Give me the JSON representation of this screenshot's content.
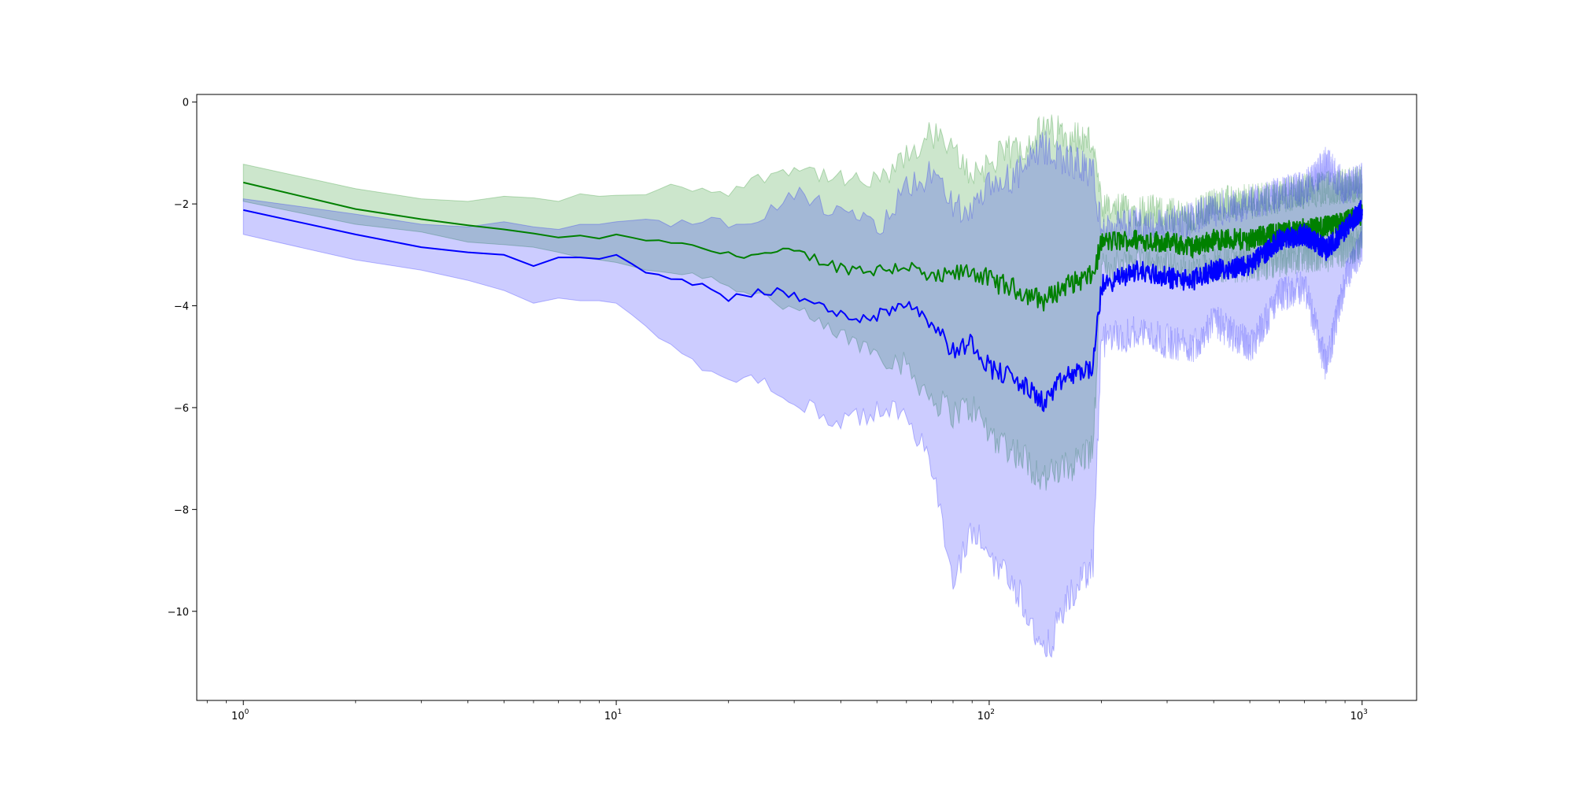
{
  "chart_data": {
    "type": "line",
    "title": "",
    "xlabel": "",
    "ylabel": "",
    "x_scale": "log",
    "xlim": [
      0.75,
      1400
    ],
    "ylim": [
      -11.75,
      0.15
    ],
    "grid": false,
    "legend": null,
    "x_ticks": [
      {
        "value": 1,
        "base": "10",
        "exp": "0"
      },
      {
        "value": 10,
        "base": "10",
        "exp": "1"
      },
      {
        "value": 100,
        "base": "10",
        "exp": "2"
      },
      {
        "value": 1000,
        "base": "10",
        "exp": "3"
      }
    ],
    "y_ticks": [
      {
        "value": 0,
        "label": "0"
      },
      {
        "value": -2,
        "label": "−2"
      },
      {
        "value": -4,
        "label": "−4"
      },
      {
        "value": -6,
        "label": "−6"
      },
      {
        "value": -8,
        "label": "−8"
      },
      {
        "value": -10,
        "label": "−10"
      }
    ],
    "series": [
      {
        "color": "#008000",
        "band_color": "#008000",
        "band_opacity": 0.2,
        "points": [
          {
            "x": 1,
            "y": -1.58,
            "lo": -1.95,
            "hi": -1.22
          },
          {
            "x": 2,
            "y": -2.1,
            "lo": -2.4,
            "hi": -1.7
          },
          {
            "x": 3,
            "y": -2.3,
            "lo": -2.55,
            "hi": -1.9
          },
          {
            "x": 4,
            "y": -2.42,
            "lo": -2.75,
            "hi": -1.95
          },
          {
            "x": 5,
            "y": -2.5,
            "lo": -2.8,
            "hi": -1.85
          },
          {
            "x": 6,
            "y": -2.58,
            "lo": -2.85,
            "hi": -1.88
          },
          {
            "x": 7,
            "y": -2.66,
            "lo": -2.95,
            "hi": -1.95
          },
          {
            "x": 8,
            "y": -2.62,
            "lo": -3.05,
            "hi": -1.8
          },
          {
            "x": 9,
            "y": -2.68,
            "lo": -3.1,
            "hi": -1.85
          },
          {
            "x": 10,
            "y": -2.6,
            "lo": -3.15,
            "hi": -1.83
          },
          {
            "x": 12,
            "y": -2.72,
            "lo": -3.3,
            "hi": -1.82
          },
          {
            "x": 14,
            "y": -2.75,
            "lo": -3.35,
            "hi": -1.65
          },
          {
            "x": 17,
            "y": -2.88,
            "lo": -3.4,
            "hi": -1.72
          },
          {
            "x": 20,
            "y": -3.0,
            "lo": -3.6,
            "hi": -1.75
          },
          {
            "x": 25,
            "y": -2.98,
            "lo": -3.8,
            "hi": -1.45
          },
          {
            "x": 30,
            "y": -2.95,
            "lo": -4.1,
            "hi": -1.25
          },
          {
            "x": 35,
            "y": -3.1,
            "lo": -4.4,
            "hi": -1.4
          },
          {
            "x": 40,
            "y": -3.25,
            "lo": -4.6,
            "hi": -1.55
          },
          {
            "x": 50,
            "y": -3.3,
            "lo": -4.9,
            "hi": -1.6
          },
          {
            "x": 60,
            "y": -3.2,
            "lo": -5.2,
            "hi": -1.1
          },
          {
            "x": 70,
            "y": -3.5,
            "lo": -5.8,
            "hi": -0.6
          },
          {
            "x": 80,
            "y": -3.4,
            "lo": -6.1,
            "hi": -1.0
          },
          {
            "x": 90,
            "y": -3.3,
            "lo": -6.0,
            "hi": -1.4
          },
          {
            "x": 100,
            "y": -3.5,
            "lo": -6.5,
            "hi": -1.2
          },
          {
            "x": 120,
            "y": -3.7,
            "lo": -6.9,
            "hi": -0.9
          },
          {
            "x": 140,
            "y": -3.9,
            "lo": -7.4,
            "hi": -0.55
          },
          {
            "x": 160,
            "y": -3.6,
            "lo": -7.2,
            "hi": -0.6
          },
          {
            "x": 190,
            "y": -3.4,
            "lo": -6.8,
            "hi": -0.8
          },
          {
            "x": 200,
            "y": -2.75,
            "lo": -3.3,
            "hi": -2.15
          },
          {
            "x": 250,
            "y": -2.7,
            "lo": -3.1,
            "hi": -2.1
          },
          {
            "x": 300,
            "y": -2.75,
            "lo": -3.25,
            "hi": -2.2
          },
          {
            "x": 350,
            "y": -2.85,
            "lo": -3.4,
            "hi": -2.25
          },
          {
            "x": 400,
            "y": -2.7,
            "lo": -3.2,
            "hi": -2.0
          },
          {
            "x": 500,
            "y": -2.7,
            "lo": -3.2,
            "hi": -1.95
          },
          {
            "x": 600,
            "y": -2.55,
            "lo": -3.1,
            "hi": -1.85
          },
          {
            "x": 700,
            "y": -2.5,
            "lo": -3.0,
            "hi": -1.75
          },
          {
            "x": 800,
            "y": -2.45,
            "lo": -3.0,
            "hi": -1.7
          },
          {
            "x": 900,
            "y": -2.35,
            "lo": -2.9,
            "hi": -1.65
          },
          {
            "x": 1000,
            "y": -2.2,
            "lo": -2.75,
            "hi": -1.6
          }
        ]
      },
      {
        "color": "#0000ff",
        "band_color": "#0000ff",
        "band_opacity": 0.2,
        "points": [
          {
            "x": 1,
            "y": -2.12,
            "lo": -2.6,
            "hi": -1.9
          },
          {
            "x": 2,
            "y": -2.6,
            "lo": -3.1,
            "hi": -2.2
          },
          {
            "x": 3,
            "y": -2.85,
            "lo": -3.3,
            "hi": -2.4
          },
          {
            "x": 4,
            "y": -2.95,
            "lo": -3.5,
            "hi": -2.45
          },
          {
            "x": 5,
            "y": -3.0,
            "lo": -3.7,
            "hi": -2.35
          },
          {
            "x": 6,
            "y": -3.22,
            "lo": -3.95,
            "hi": -2.45
          },
          {
            "x": 7,
            "y": -3.05,
            "lo": -3.85,
            "hi": -2.5
          },
          {
            "x": 8,
            "y": -3.05,
            "lo": -3.9,
            "hi": -2.4
          },
          {
            "x": 9,
            "y": -3.08,
            "lo": -3.9,
            "hi": -2.4
          },
          {
            "x": 10,
            "y": -3.0,
            "lo": -3.95,
            "hi": -2.35
          },
          {
            "x": 12,
            "y": -3.35,
            "lo": -4.4,
            "hi": -2.3
          },
          {
            "x": 14,
            "y": -3.45,
            "lo": -4.8,
            "hi": -2.4
          },
          {
            "x": 17,
            "y": -3.6,
            "lo": -5.2,
            "hi": -2.3
          },
          {
            "x": 20,
            "y": -3.85,
            "lo": -5.4,
            "hi": -2.4
          },
          {
            "x": 25,
            "y": -3.7,
            "lo": -5.5,
            "hi": -2.2
          },
          {
            "x": 30,
            "y": -3.8,
            "lo": -5.9,
            "hi": -1.8
          },
          {
            "x": 35,
            "y": -4.0,
            "lo": -6.1,
            "hi": -2.0
          },
          {
            "x": 40,
            "y": -4.2,
            "lo": -6.3,
            "hi": -2.2
          },
          {
            "x": 50,
            "y": -4.2,
            "lo": -6.1,
            "hi": -2.5
          },
          {
            "x": 60,
            "y": -3.9,
            "lo": -6.0,
            "hi": -1.7
          },
          {
            "x": 70,
            "y": -4.3,
            "lo": -7.2,
            "hi": -1.4
          },
          {
            "x": 80,
            "y": -4.9,
            "lo": -9.5,
            "hi": -2.0
          },
          {
            "x": 90,
            "y": -4.7,
            "lo": -8.4,
            "hi": -2.2
          },
          {
            "x": 100,
            "y": -5.2,
            "lo": -8.9,
            "hi": -1.7
          },
          {
            "x": 120,
            "y": -5.5,
            "lo": -9.6,
            "hi": -1.4
          },
          {
            "x": 140,
            "y": -5.9,
            "lo": -10.9,
            "hi": -0.9
          },
          {
            "x": 160,
            "y": -5.4,
            "lo": -9.9,
            "hi": -1.1
          },
          {
            "x": 190,
            "y": -5.2,
            "lo": -9.0,
            "hi": -1.4
          },
          {
            "x": 200,
            "y": -3.6,
            "lo": -4.7,
            "hi": -2.5
          },
          {
            "x": 250,
            "y": -3.3,
            "lo": -4.5,
            "hi": -2.4
          },
          {
            "x": 300,
            "y": -3.45,
            "lo": -4.7,
            "hi": -2.4
          },
          {
            "x": 350,
            "y": -3.5,
            "lo": -4.8,
            "hi": -2.3
          },
          {
            "x": 400,
            "y": -3.3,
            "lo": -4.3,
            "hi": -2.1
          },
          {
            "x": 500,
            "y": -3.2,
            "lo": -4.8,
            "hi": -2.0
          },
          {
            "x": 600,
            "y": -2.7,
            "lo": -3.8,
            "hi": -1.8
          },
          {
            "x": 700,
            "y": -2.6,
            "lo": -3.6,
            "hi": -1.7
          },
          {
            "x": 800,
            "y": -2.9,
            "lo": -5.2,
            "hi": -1.2
          },
          {
            "x": 900,
            "y": -2.5,
            "lo": -3.5,
            "hi": -1.7
          },
          {
            "x": 1000,
            "y": -2.1,
            "lo": -2.8,
            "hi": -1.5
          }
        ]
      }
    ]
  }
}
